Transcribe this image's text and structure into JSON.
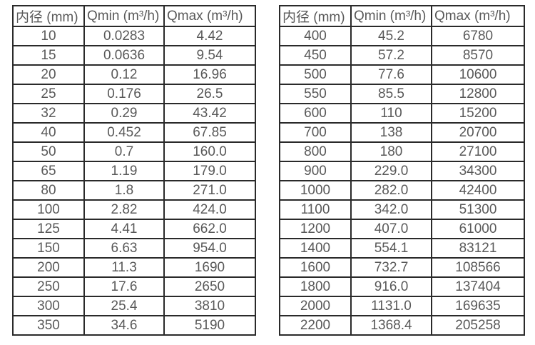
{
  "page": {
    "background_color": "#ffffff",
    "border_color": "#2a2a2a",
    "text_color": "#595959"
  },
  "tables": [
    {
      "name": "small-diameters",
      "headers": [
        "内径 (mm)",
        "Qmin (m³/h)",
        "Qmax (m³/h)"
      ],
      "rows": [
        [
          "10",
          "0.0283",
          "4.42"
        ],
        [
          "15",
          "0.0636",
          "9.54"
        ],
        [
          "20",
          "0.12",
          "16.96"
        ],
        [
          "25",
          "0.176",
          "26.5"
        ],
        [
          "32",
          "0.29",
          "43.42"
        ],
        [
          "40",
          "0.452",
          "67.85"
        ],
        [
          "50",
          "0.7",
          "160.0"
        ],
        [
          "65",
          "1.19",
          "179.0"
        ],
        [
          "80",
          "1.8",
          "271.0"
        ],
        [
          "100",
          "2.82",
          "424.0"
        ],
        [
          "125",
          "4.41",
          "662.0"
        ],
        [
          "150",
          "6.63",
          "954.0"
        ],
        [
          "200",
          "11.3",
          "1690"
        ],
        [
          "250",
          "17.6",
          "2650"
        ],
        [
          "300",
          "25.4",
          "3810"
        ],
        [
          "350",
          "34.6",
          "5190"
        ]
      ]
    },
    {
      "name": "large-diameters",
      "headers": [
        "内径 (mm)",
        "Qmin (m³/h)",
        "Qmax (m³/h)"
      ],
      "rows": [
        [
          "400",
          "45.2",
          "6780"
        ],
        [
          "450",
          "57.2",
          "8570"
        ],
        [
          "500",
          "77.6",
          "10600"
        ],
        [
          "550",
          "85.5",
          "12800"
        ],
        [
          "600",
          "110",
          "15200"
        ],
        [
          "700",
          "138",
          "20700"
        ],
        [
          "800",
          "180",
          "27100"
        ],
        [
          "900",
          "229.0",
          "34300"
        ],
        [
          "1000",
          "282.0",
          "42400"
        ],
        [
          "1100",
          "342.0",
          "51300"
        ],
        [
          "1200",
          "407.0",
          "61000"
        ],
        [
          "1400",
          "554.1",
          "83121"
        ],
        [
          "1600",
          "732.7",
          "108566"
        ],
        [
          "1800",
          "916.0",
          "137404"
        ],
        [
          "2000",
          "1131.0",
          "169635"
        ],
        [
          "2200",
          "1368.4",
          "205258"
        ]
      ]
    }
  ]
}
